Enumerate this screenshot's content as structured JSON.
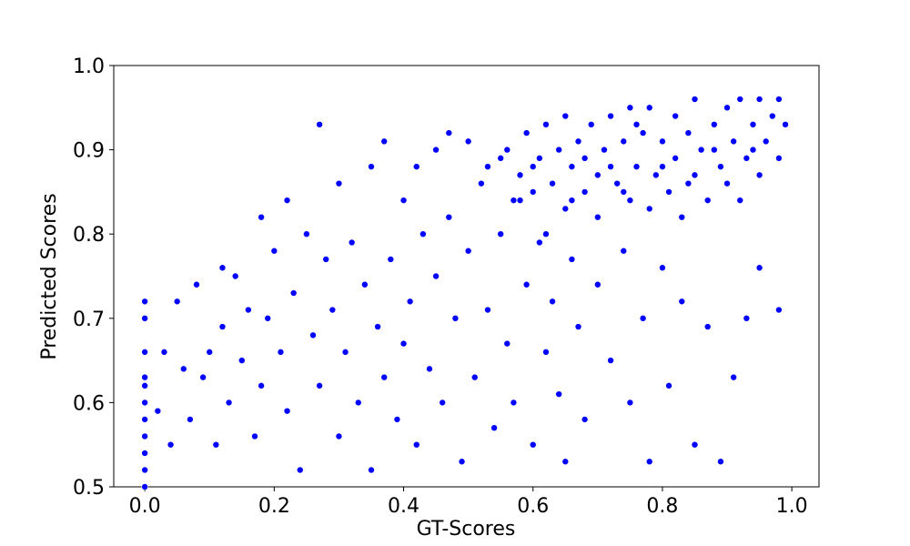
{
  "chart_data": {
    "type": "scatter",
    "xlabel": "GT-Scores",
    "ylabel": "Predicted Scores",
    "color": "#0000ff",
    "xlim": [
      -0.048,
      1.042
    ],
    "ylim": [
      0.5,
      1.0
    ],
    "xticks": [
      {
        "value": 0,
        "label": "0.0"
      },
      0.2,
      0.4,
      0.6,
      0.8,
      {
        "value": 1,
        "label": "1.0"
      }
    ],
    "yticks": [
      0.5,
      0.6,
      0.7,
      0.8,
      0.9,
      {
        "value": 1,
        "label": "1.0"
      }
    ],
    "x": [
      0,
      0,
      0,
      0,
      0,
      0,
      0,
      0,
      0,
      0,
      0,
      0.02,
      0.03,
      0.04,
      0.05,
      0.06,
      0.07,
      0.08,
      0.09,
      0.1,
      0.11,
      0.12,
      0.12,
      0.13,
      0.14,
      0.15,
      0.16,
      0.17,
      0.18,
      0.18,
      0.19,
      0.2,
      0.21,
      0.22,
      0.22,
      0.23,
      0.24,
      0.25,
      0.26,
      0.27,
      0.27,
      0.28,
      0.29,
      0.3,
      0.3,
      0.31,
      0.32,
      0.33,
      0.34,
      0.35,
      0.35,
      0.36,
      0.37,
      0.37,
      0.38,
      0.39,
      0.4,
      0.4,
      0.41,
      0.42,
      0.42,
      0.43,
      0.44,
      0.45,
      0.45,
      0.46,
      0.47,
      0.47,
      0.48,
      0.49,
      0.5,
      0.5,
      0.51,
      0.52,
      0.53,
      0.54,
      0.55,
      0.55,
      0.56,
      0.57,
      0.58,
      0.59,
      0.6,
      0.61,
      0.62,
      0.63,
      0.64,
      0.65,
      0.66,
      0.67,
      0.68,
      0.7,
      0.72,
      0.74,
      0.75,
      0.77,
      0.78,
      0.8,
      0.81,
      0.83,
      0.85,
      0.87,
      0.89,
      0.91,
      0.93,
      0.95,
      0.98,
      0.56,
      0.58,
      0.59,
      0.6,
      0.61,
      0.62,
      0.63,
      0.64,
      0.65,
      0.65,
      0.66,
      0.67,
      0.68,
      0.69,
      0.7,
      0.7,
      0.71,
      0.72,
      0.73,
      0.74,
      0.75,
      0.75,
      0.76,
      0.77,
      0.78,
      0.78,
      0.79,
      0.8,
      0.81,
      0.82,
      0.82,
      0.83,
      0.84,
      0.85,
      0.85,
      0.86,
      0.87,
      0.88,
      0.89,
      0.9,
      0.9,
      0.91,
      0.92,
      0.92,
      0.93,
      0.94,
      0.95,
      0.95,
      0.96,
      0.97,
      0.98,
      0.98,
      0.99,
      0.6,
      0.62,
      0.66,
      0.68,
      0.72,
      0.74,
      0.76,
      0.8,
      0.84,
      0.88,
      0.94,
      0.57,
      0.53
    ],
    "values": [
      0.5,
      0.52,
      0.54,
      0.56,
      0.58,
      0.6,
      0.62,
      0.63,
      0.66,
      0.7,
      0.72,
      0.59,
      0.66,
      0.55,
      0.72,
      0.64,
      0.58,
      0.74,
      0.63,
      0.66,
      0.55,
      0.76,
      0.69,
      0.6,
      0.75,
      0.65,
      0.71,
      0.56,
      0.82,
      0.62,
      0.7,
      0.78,
      0.66,
      0.84,
      0.59,
      0.73,
      0.52,
      0.8,
      0.68,
      0.93,
      0.62,
      0.77,
      0.71,
      0.86,
      0.56,
      0.66,
      0.79,
      0.6,
      0.74,
      0.88,
      0.52,
      0.69,
      0.91,
      0.63,
      0.77,
      0.58,
      0.84,
      0.67,
      0.72,
      0.88,
      0.55,
      0.8,
      0.64,
      0.9,
      0.75,
      0.6,
      0.92,
      0.82,
      0.7,
      0.53,
      0.91,
      0.78,
      0.63,
      0.86,
      0.71,
      0.57,
      0.89,
      0.8,
      0.67,
      0.6,
      0.84,
      0.74,
      0.55,
      0.79,
      0.66,
      0.72,
      0.61,
      0.53,
      0.77,
      0.69,
      0.58,
      0.74,
      0.65,
      0.78,
      0.6,
      0.7,
      0.53,
      0.76,
      0.62,
      0.72,
      0.55,
      0.69,
      0.53,
      0.63,
      0.7,
      0.76,
      0.71,
      0.9,
      0.87,
      0.92,
      0.85,
      0.89,
      0.93,
      0.86,
      0.9,
      0.83,
      0.94,
      0.88,
      0.91,
      0.85,
      0.93,
      0.87,
      0.82,
      0.9,
      0.94,
      0.86,
      0.91,
      0.84,
      0.95,
      0.88,
      0.92,
      0.83,
      0.95,
      0.87,
      0.91,
      0.85,
      0.94,
      0.89,
      0.82,
      0.92,
      0.87,
      0.96,
      0.9,
      0.84,
      0.93,
      0.88,
      0.95,
      0.86,
      0.91,
      0.96,
      0.84,
      0.89,
      0.93,
      0.87,
      0.96,
      0.91,
      0.94,
      0.89,
      0.96,
      0.93,
      0.88,
      0.8,
      0.84,
      0.89,
      0.88,
      0.85,
      0.93,
      0.88,
      0.86,
      0.9,
      0.9,
      0.84,
      0.88
    ]
  }
}
